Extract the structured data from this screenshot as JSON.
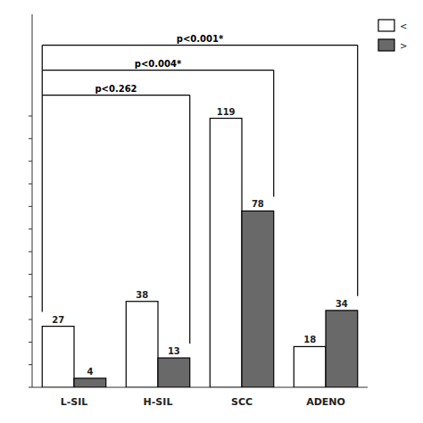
{
  "chart_data": {
    "type": "bar",
    "categories": [
      "L-SIL",
      "H-SIL",
      "SCC",
      "ADENO"
    ],
    "series": [
      {
        "name": "<",
        "color": "#FFFFFF",
        "values": [
          27,
          38,
          119,
          18
        ]
      },
      {
        "name": ">",
        "color": "#696969",
        "values": [
          4,
          13,
          78,
          34
        ]
      }
    ],
    "ylim": [
      0,
      165
    ],
    "yticks": [
      0,
      10,
      20,
      30,
      40,
      50,
      60,
      70,
      80,
      90,
      100,
      110,
      120
    ],
    "tick_labels": "x",
    "data_labels": true,
    "grid": false,
    "legend": "upper right",
    "annotations": [
      {
        "text": "p<0.262",
        "from": "L-SIL",
        "to": "H-SIL"
      },
      {
        "text": "p<0.004*",
        "from": "L-SIL",
        "to": "SCC"
      },
      {
        "text": "p<0.001*",
        "from": "L-SIL",
        "to": "ADENO"
      }
    ]
  }
}
